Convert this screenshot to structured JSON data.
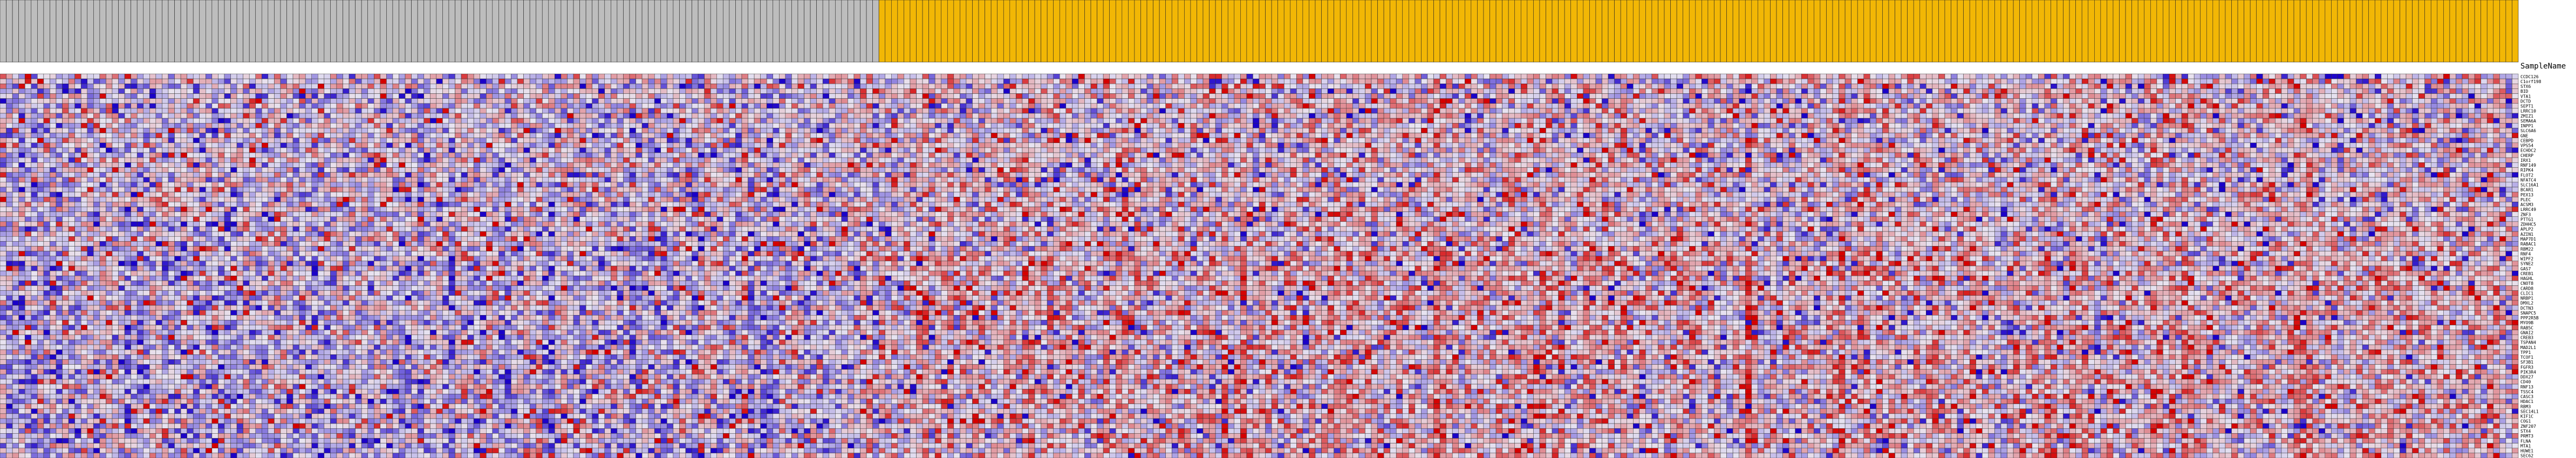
{
  "chart_data": {
    "type": "heatmap",
    "title": "",
    "column_header_label": "SampleName",
    "value_scale": {
      "min": -3,
      "max": 3,
      "low_color": "#1a00c8",
      "mid_color": "#e8e4f0",
      "high_color": "#d40000"
    },
    "groups": [
      {
        "color": "#bdbdbd",
        "count": 141
      },
      {
        "color": "#f2b705",
        "count": 263
      }
    ],
    "samples": [],
    "genes": [
      "CCDC126",
      "C1orf198",
      "STX6",
      "BID",
      "VTA1",
      "DCTD",
      "SEPT1",
      "LRRC10",
      "ZMIZ1",
      "SEMA6A",
      "INPP1",
      "SLC6A6",
      "GNE",
      "CEBPD",
      "VPS54",
      "ECHDC2",
      "CHERP",
      "IRX1",
      "RNF149",
      "RIPK4",
      "FLOT2",
      "NFATC4",
      "SLC16A1",
      "BCAR1",
      "PEX13",
      "PLEC",
      "ACSM3",
      "LRRC49",
      "ZNF3",
      "PTTG1",
      "ZDHHC5",
      "APLP2",
      "AZIN1",
      "MAP7D1",
      "RABAC1",
      "RBM22",
      "RNF4",
      "WIPF2",
      "SYNE2",
      "GAS7",
      "CREB1",
      "HAGHL",
      "CNOT8",
      "CARD8",
      "CLIC1",
      "NRBP1",
      "DMXL2",
      "DCTN3",
      "SNAPC5",
      "PPP2R5B",
      "MYO9B",
      "RAB5C",
      "GNAI2",
      "CREB3",
      "TSPAN4",
      "MAD2L1",
      "TPP1",
      "TCOF1",
      "SF3B1",
      "FGFR3",
      "PIK3R4",
      "DDX27",
      "CD40",
      "RNF13",
      "TSSC4",
      "CASC3",
      "HDAC1",
      "RBM3",
      "SEC14L1",
      "KIF1C",
      "COG1",
      "ZNF207",
      "STX4",
      "PRMT3",
      "FLNA",
      "MTA1",
      "HUWE1",
      "SEC62"
    ],
    "values": []
  }
}
